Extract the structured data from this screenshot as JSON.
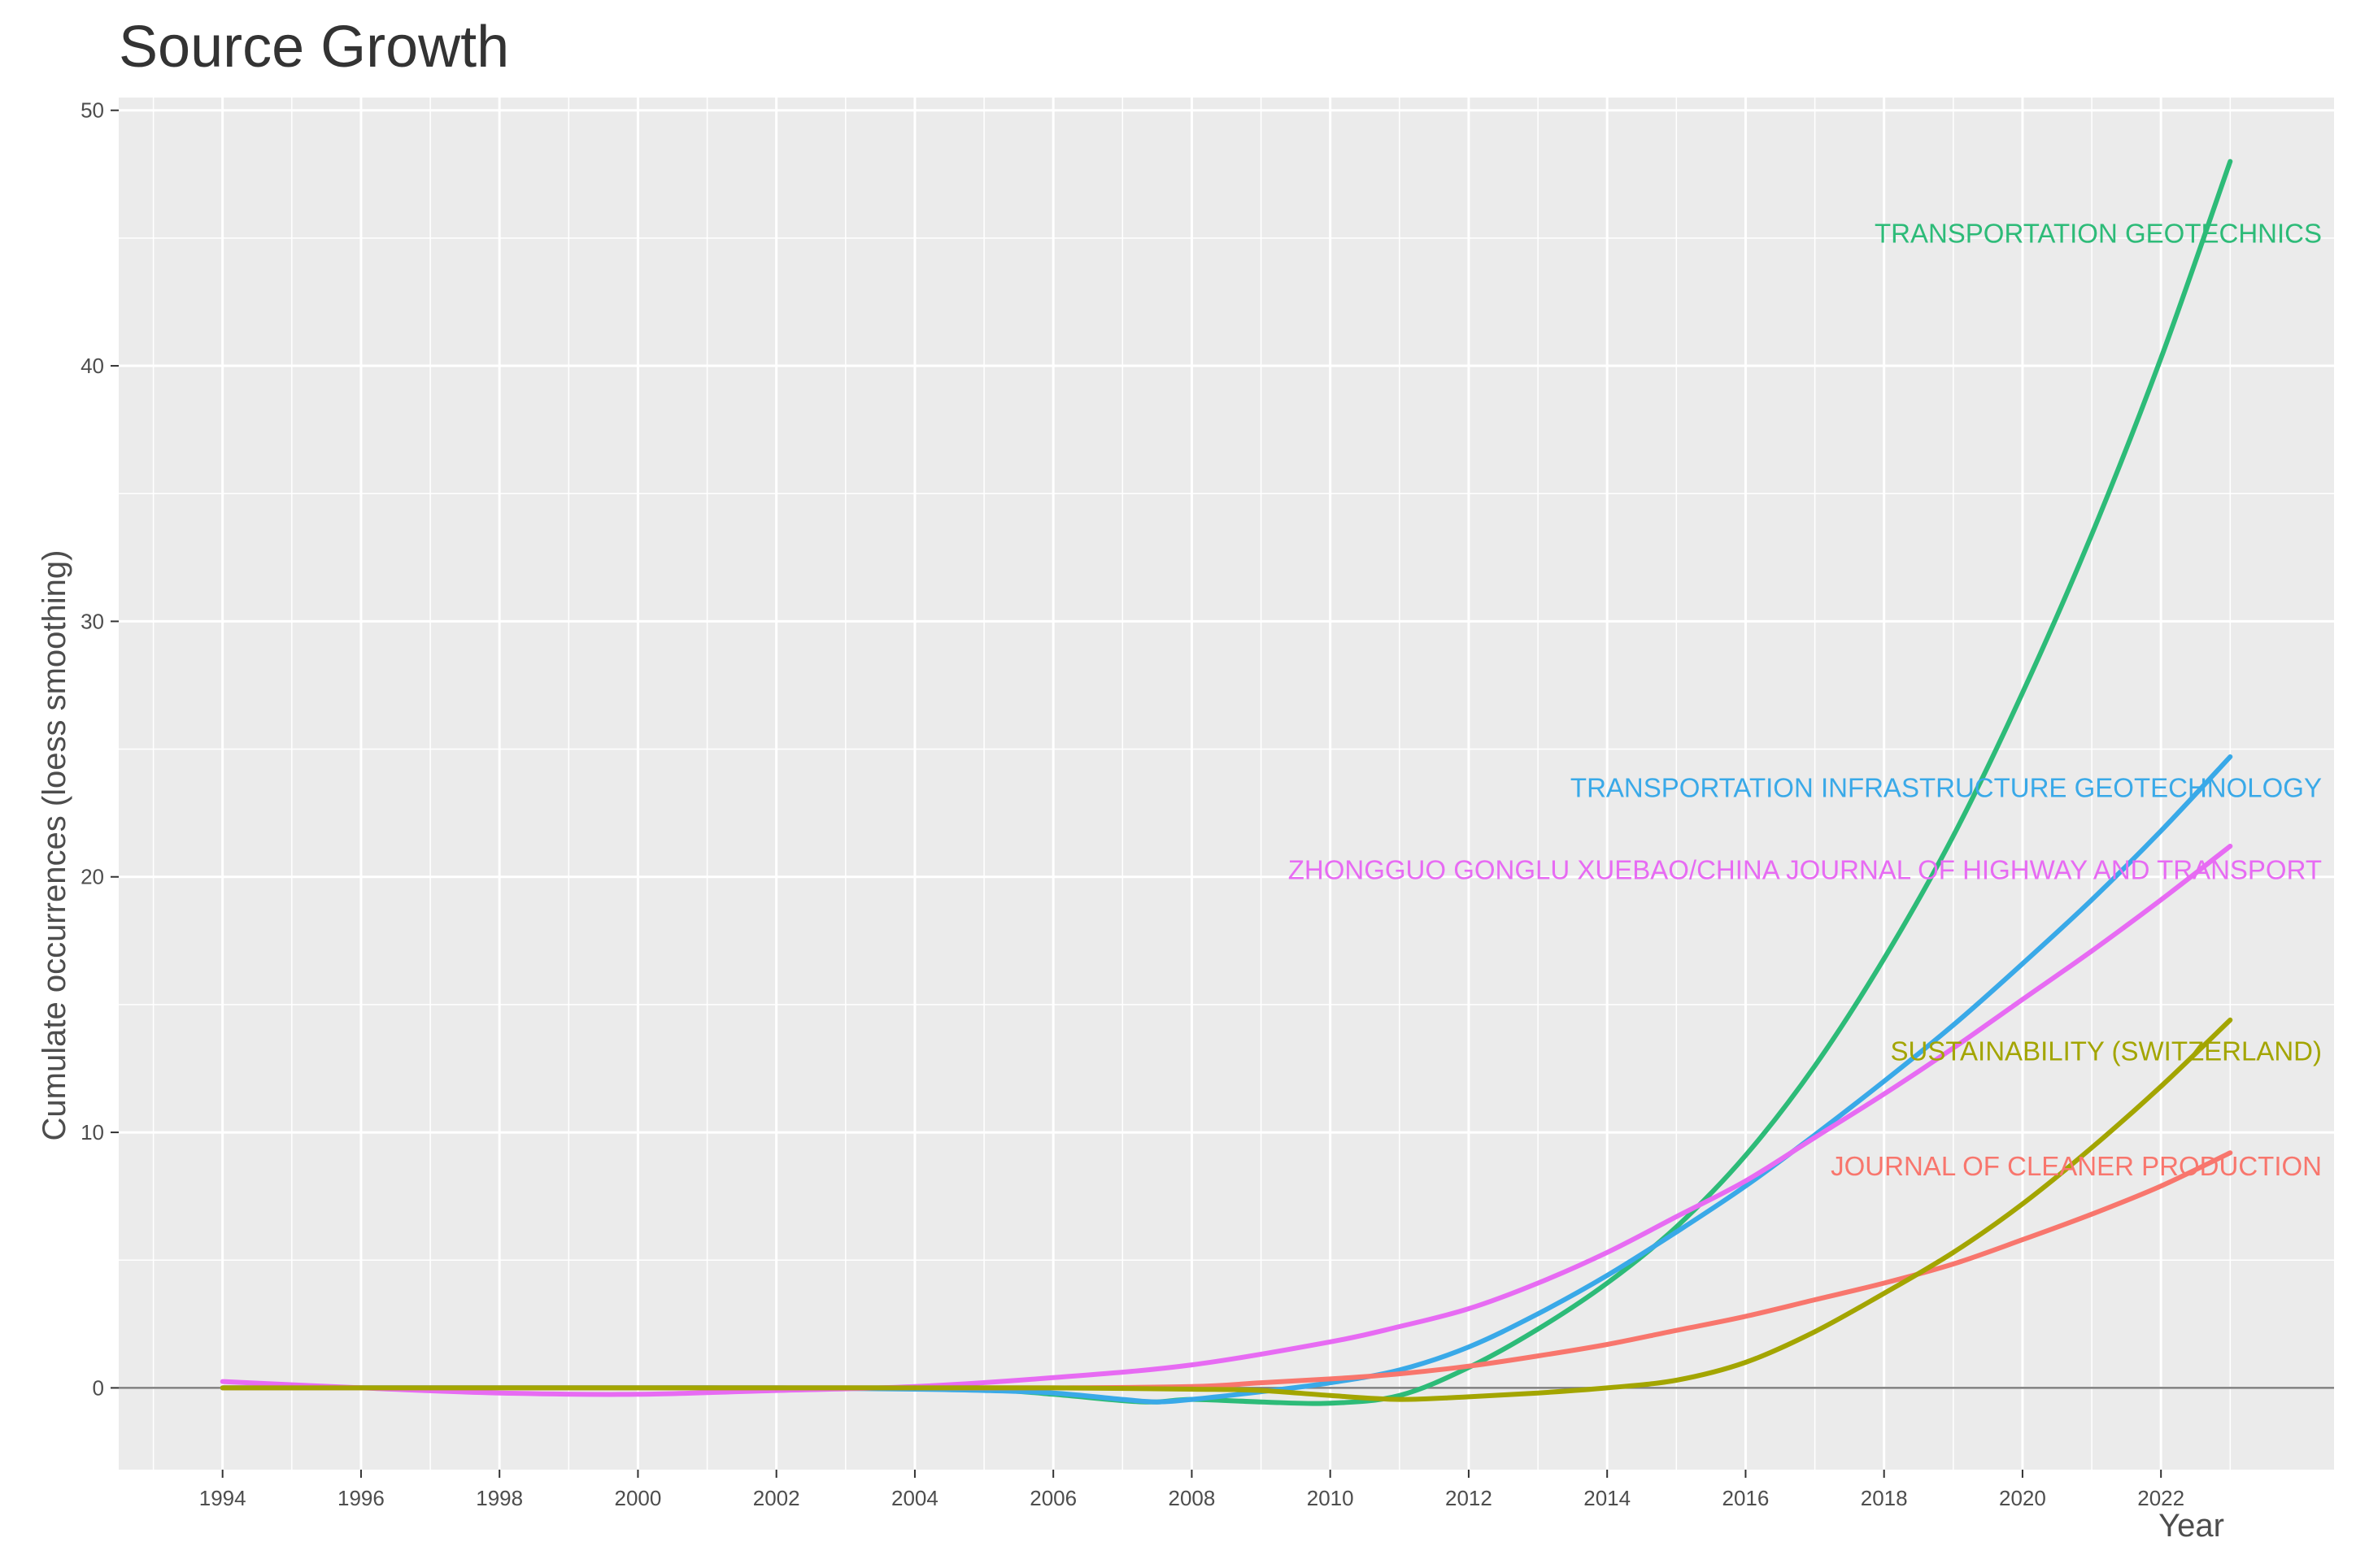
{
  "chart_data": {
    "type": "line",
    "title": "Source Growth",
    "xlabel": "Year",
    "ylabel": "Cumulate occurrences (loess smoothing)",
    "xlim": [
      1992.5,
      2024.5
    ],
    "ylim": [
      -3.2,
      50.5
    ],
    "x_ticks": [
      1994,
      1996,
      1998,
      2000,
      2002,
      2004,
      2006,
      2008,
      2010,
      2012,
      2014,
      2016,
      2018,
      2020,
      2022
    ],
    "y_ticks": [
      0,
      10,
      20,
      30,
      40,
      50
    ],
    "x_tick_labels": [
      "1994",
      "1996",
      "1998",
      "2000",
      "2002",
      "2004",
      "2006",
      "2008",
      "2010",
      "2012",
      "2014",
      "2016",
      "2018",
      "2020",
      "2022"
    ],
    "y_tick_labels": [
      "0",
      "10",
      "20",
      "30",
      "40",
      "50"
    ],
    "background": "#EBEBEB",
    "grid": true,
    "reference_line_y": 0,
    "series": [
      {
        "name": "TRANSPORTATION GEOTECHNICS",
        "color": "#2DBB78",
        "label_y": 45.2,
        "x": [
          1994,
          1996,
          1998,
          2000,
          2002,
          2004,
          2005,
          2006,
          2007,
          2007.5,
          2008,
          2009,
          2010,
          2011,
          2012,
          2013,
          2014,
          2015,
          2016,
          2017,
          2018,
          2019,
          2020,
          2021,
          2022,
          2023
        ],
        "y": [
          0,
          0,
          0,
          0,
          0,
          0,
          -0.05,
          -0.25,
          -0.5,
          -0.55,
          -0.45,
          -0.55,
          -0.6,
          -0.3,
          0.8,
          2.3,
          4.1,
          6.3,
          9.1,
          12.6,
          16.8,
          21.6,
          27.2,
          33.4,
          40.3,
          48
        ]
      },
      {
        "name": "TRANSPORTATION INFRASTRUCTURE GEOTECHNOLOGY",
        "color": "#39A9E8",
        "label_y": 23.5,
        "x": [
          1994,
          1996,
          1998,
          2000,
          2002,
          2004,
          2005,
          2006,
          2007,
          2007.5,
          2008,
          2009,
          2010,
          2011,
          2012,
          2013,
          2014,
          2015,
          2016,
          2017,
          2018,
          2019,
          2020,
          2021,
          2022,
          2023
        ],
        "y": [
          0,
          0,
          0,
          0,
          0,
          -0.05,
          -0.1,
          -0.2,
          -0.45,
          -0.55,
          -0.45,
          -0.15,
          0.2,
          0.7,
          1.6,
          2.9,
          4.4,
          6.1,
          7.9,
          9.9,
          12,
          14.2,
          16.6,
          19.1,
          21.8,
          24.7
        ]
      },
      {
        "name": "ZHONGGUO GONGLU XUEBAO/CHINA JOURNAL OF HIGHWAY AND TRANSPORT",
        "color": "#E76BF3",
        "label_y": 20.3,
        "x": [
          1994,
          1996,
          1998,
          2000,
          2002,
          2004,
          2006,
          2008,
          2010,
          2011,
          2012,
          2013,
          2014,
          2015,
          2016,
          2017,
          2018,
          2019,
          2020,
          2021,
          2022,
          2023
        ],
        "y": [
          0.25,
          0,
          -0.2,
          -0.25,
          -0.1,
          0.05,
          0.4,
          0.9,
          1.8,
          2.4,
          3.1,
          4.1,
          5.3,
          6.7,
          8.1,
          9.8,
          11.5,
          13.3,
          15.2,
          17.1,
          19.1,
          21.2
        ]
      },
      {
        "name": "SUSTAINABILITY (SWITZERLAND)",
        "color": "#A3A500",
        "label_y": 13.2,
        "x": [
          1994,
          1996,
          1998,
          2000,
          2002,
          2004,
          2006,
          2008,
          2009,
          2010,
          2011,
          2012,
          2013,
          2014,
          2015,
          2016,
          2017,
          2018,
          2019,
          2020,
          2021,
          2022,
          2023
        ],
        "y": [
          0,
          0,
          0,
          0,
          0,
          0,
          0,
          -0.05,
          -0.1,
          -0.3,
          -0.45,
          -0.35,
          -0.2,
          0,
          0.3,
          1,
          2.2,
          3.7,
          5.3,
          7.2,
          9.4,
          11.8,
          14.4
        ]
      },
      {
        "name": "JOURNAL OF CLEANER PRODUCTION",
        "color": "#F8766D",
        "label_y": 8.7,
        "x": [
          1994,
          1996,
          1998,
          2000,
          2002,
          2004,
          2006,
          2008,
          2009,
          2010,
          2011,
          2012,
          2013,
          2014,
          2015,
          2016,
          2017,
          2018,
          2019,
          2020,
          2021,
          2022,
          2023
        ],
        "y": [
          0,
          0,
          0,
          0,
          0,
          0,
          0,
          0.05,
          0.2,
          0.35,
          0.55,
          0.85,
          1.25,
          1.7,
          2.25,
          2.8,
          3.45,
          4.1,
          4.85,
          5.8,
          6.8,
          7.9,
          9.2
        ]
      }
    ]
  }
}
